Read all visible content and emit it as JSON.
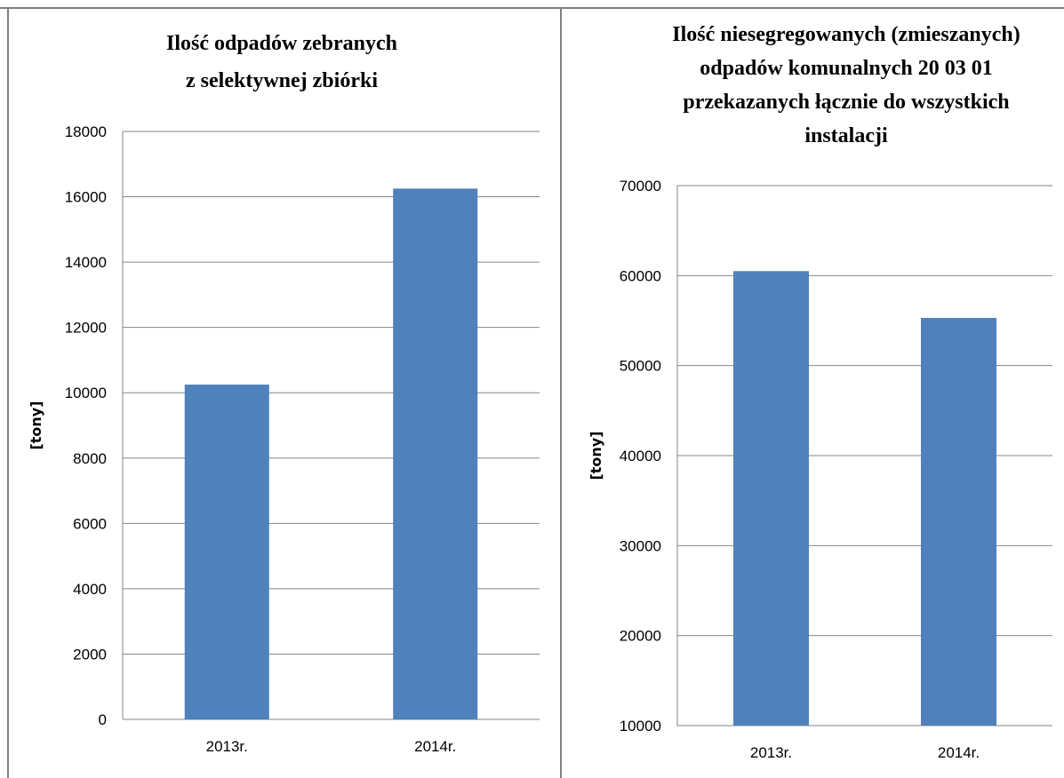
{
  "chart_data": [
    {
      "type": "bar",
      "title_lines": [
        "Ilość odpadów zebranych",
        "z selektywnej zbiórki"
      ],
      "ylabel": "[tony]",
      "categories": [
        "2013r.",
        "2014r."
      ],
      "values": [
        10250,
        16250
      ],
      "ylim": [
        0,
        18000
      ],
      "yticks": [
        "0",
        "2000",
        "4000",
        "6000",
        "8000",
        "10000",
        "12000",
        "14000",
        "16000",
        "18000"
      ],
      "grid": true,
      "bar_color": "#4f81bd"
    },
    {
      "type": "bar",
      "title_lines": [
        "Ilość niesegregowanych (zmieszanych)",
        "odpadów komunalnych 20 03 01",
        "przekazanych  łącznie do wszystkich",
        "instalacji"
      ],
      "ylabel": "[tony]",
      "categories": [
        "2013r.",
        "2014r."
      ],
      "values": [
        60500,
        55300
      ],
      "ylim": [
        10000,
        70000
      ],
      "yticks": [
        "10000",
        "20000",
        "30000",
        "40000",
        "50000",
        "60000",
        "70000"
      ],
      "grid": true,
      "bar_color": "#4f81bd"
    }
  ]
}
